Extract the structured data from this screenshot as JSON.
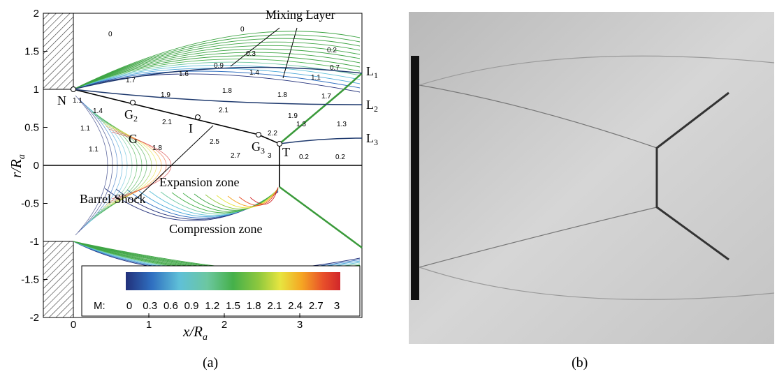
{
  "panel_a": {
    "label": "(a)",
    "x_axis_label": {
      "main": "x/R",
      "sub": "a"
    },
    "y_axis_label": {
      "main": "r/R",
      "sub": "a"
    },
    "xticks": [
      "0",
      "1",
      "2",
      "3"
    ],
    "yticks": [
      "2",
      "1.5",
      "1",
      "0.5",
      "0",
      "-0.5",
      "-1",
      "-1.5",
      "-2"
    ],
    "annotations": {
      "mixing_layer": "Mixing Layer",
      "l1": {
        "text": "L",
        "sub": "1"
      },
      "l2": {
        "text": "L",
        "sub": "2"
      },
      "l3": {
        "text": "L",
        "sub": "3"
      },
      "n": "N",
      "g2": {
        "text": "G",
        "sub": "2"
      },
      "g": "G",
      "i": "I",
      "g3": {
        "text": "G",
        "sub": "3"
      },
      "t": "T",
      "barrel_shock": "Barrel Shock",
      "expansion_zone": "Expansion zone",
      "compression_zone": "Compression zone"
    },
    "contour_labels": [
      "0",
      "0",
      "0.3",
      "0.2",
      "0.9",
      "0.7",
      "1.6",
      "1.4",
      "1.1",
      "1.7",
      "1.9",
      "1.8",
      "1.8",
      "1.7",
      "2.1",
      "1.4",
      "1.1",
      "2.1",
      "1.9",
      "1.3",
      "1.3",
      "1.1",
      "1.1",
      "1.8",
      "2.5",
      "2.7",
      "2.2",
      "3",
      "0.2",
      "0.2"
    ],
    "colorbar": {
      "title": "M:",
      "ticks": [
        "0",
        "0.3",
        "0.6",
        "0.9",
        "1.2",
        "1.5",
        "1.8",
        "2.1",
        "2.4",
        "2.7",
        "3"
      ]
    }
  },
  "panel_b": {
    "label": "(b)"
  }
}
